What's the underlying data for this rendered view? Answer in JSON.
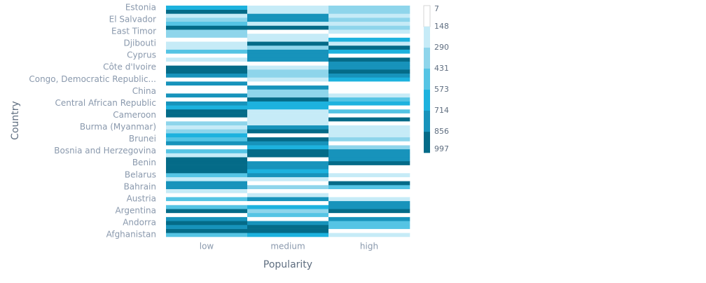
{
  "chart_data": {
    "type": "heatmap",
    "x_label": "Popularity",
    "y_label": "Country",
    "x_categories": [
      "low",
      "medium",
      "high"
    ],
    "y_categories": [
      "Afghanistan",
      null,
      null,
      "Andorra",
      null,
      null,
      "Argentina",
      null,
      null,
      "Austria",
      null,
      null,
      "Bahrain",
      null,
      null,
      "Belarus",
      null,
      null,
      "Benin",
      null,
      null,
      "Bosnia and Herzegovina",
      null,
      null,
      "Brunei",
      null,
      null,
      "Burma (Myanmar)",
      null,
      null,
      "Cameroon",
      null,
      null,
      "Central African Republic",
      null,
      null,
      "China",
      null,
      null,
      "Congo, Democratic Republic...",
      null,
      null,
      "Côte d'Ivoire",
      null,
      null,
      "Cyprus",
      null,
      null,
      "Djibouti",
      null,
      null,
      "East Timor",
      null,
      null,
      "El Salvador",
      null,
      null,
      "Estonia"
    ],
    "values": [
      [
        500,
        645,
        220
      ],
      [
        930,
        930,
        70
      ],
      [
        785,
        930,
        500
      ],
      [
        930,
        785,
        500
      ],
      [
        785,
        70,
        785
      ],
      [
        70,
        500,
        70
      ],
      [
        930,
        360,
        930
      ],
      [
        500,
        645,
        785
      ],
      [
        70,
        70,
        785
      ],
      [
        500,
        785,
        220
      ],
      [
        70,
        220,
        70
      ],
      [
        220,
        70,
        70
      ],
      [
        785,
        360,
        500
      ],
      [
        785,
        70,
        930
      ],
      [
        220,
        220,
        70
      ],
      [
        500,
        785,
        220
      ],
      [
        930,
        645,
        70
      ],
      [
        930,
        785,
        70
      ],
      [
        930,
        785,
        930
      ],
      [
        930,
        70,
        785
      ],
      [
        220,
        930,
        785
      ],
      [
        500,
        930,
        785
      ],
      [
        70,
        645,
        360
      ],
      [
        785,
        785,
        70
      ],
      [
        500,
        930,
        360
      ],
      [
        645,
        70,
        220
      ],
      [
        360,
        930,
        220
      ],
      [
        220,
        785,
        220
      ],
      [
        360,
        220,
        70
      ],
      [
        70,
        220,
        930
      ],
      [
        930,
        220,
        70
      ],
      [
        930,
        220,
        500
      ],
      [
        645,
        645,
        70
      ],
      [
        785,
        645,
        645
      ],
      [
        70,
        930,
        500
      ],
      [
        785,
        360,
        220
      ],
      [
        70,
        360,
        70
      ],
      [
        70,
        785,
        70
      ],
      [
        785,
        70,
        70
      ],
      [
        70,
        220,
        645
      ],
      [
        785,
        360,
        785
      ],
      [
        930,
        360,
        930
      ],
      [
        930,
        220,
        785
      ],
      [
        70,
        70,
        785
      ],
      [
        220,
        785,
        930
      ],
      [
        70,
        785,
        70
      ],
      [
        500,
        785,
        645
      ],
      [
        220,
        360,
        930
      ],
      [
        220,
        930,
        220
      ],
      [
        70,
        220,
        645
      ],
      [
        360,
        220,
        70
      ],
      [
        360,
        70,
        220
      ],
      [
        930,
        930,
        360
      ],
      [
        500,
        220,
        220
      ],
      [
        360,
        785,
        360
      ],
      [
        220,
        785,
        220
      ],
      [
        930,
        220,
        360
      ],
      [
        645,
        220,
        360
      ]
    ],
    "colorbar_ticks": [
      7,
      148,
      290,
      431,
      573,
      714,
      856,
      997
    ],
    "colors": [
      "#ffffff",
      "#c6ebf7",
      "#8ed5eb",
      "#55c4e4",
      "#1db2de",
      "#1793bb",
      "#046b88"
    ]
  }
}
